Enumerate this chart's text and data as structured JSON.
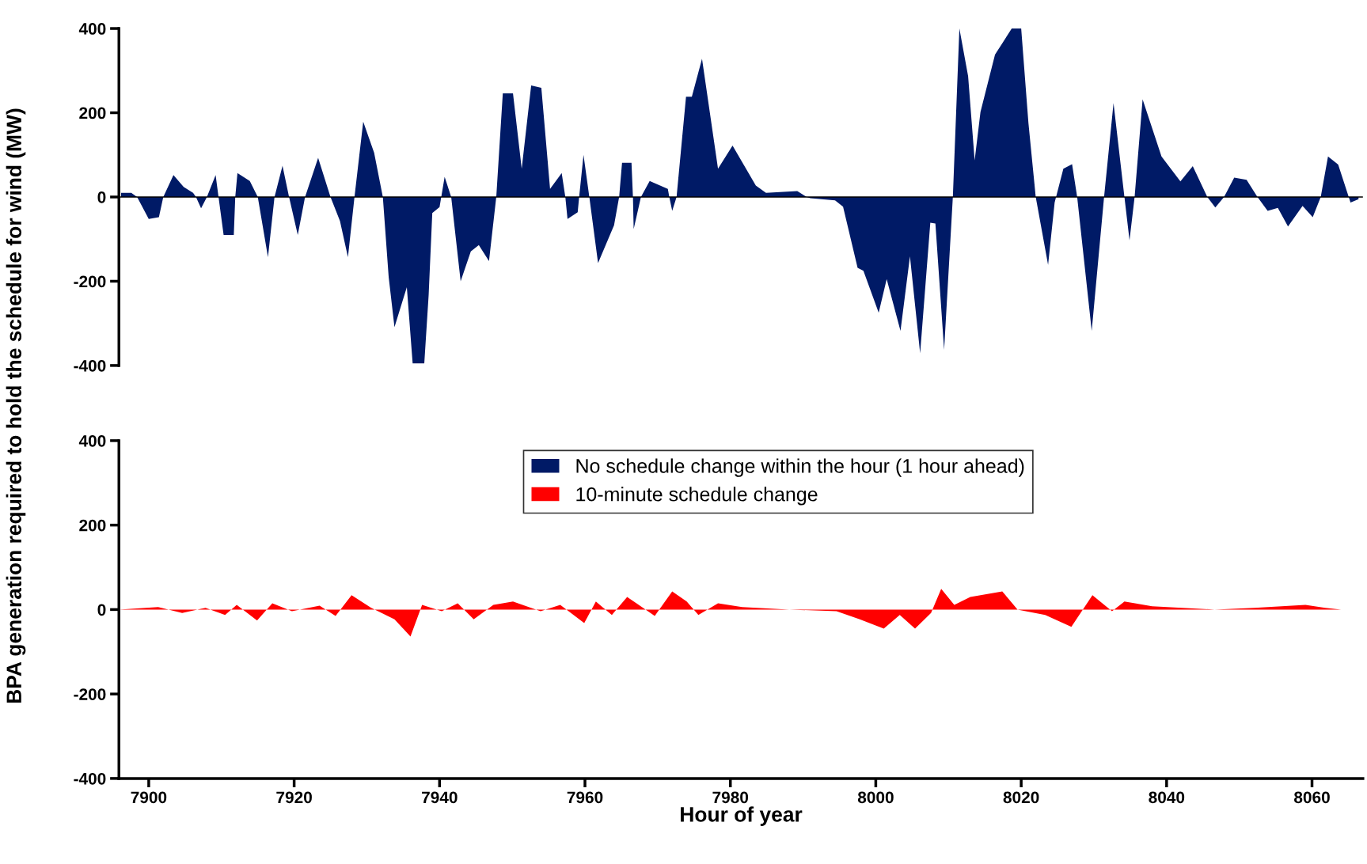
{
  "chart_data": [
    {
      "type": "area",
      "ylabel": "BPA generation required to hold the schedule for wind (MW)",
      "xlim": [
        7895.9,
        8067
      ],
      "ylim": [
        -400,
        400
      ],
      "yticks": [
        -400,
        -200,
        0,
        200,
        400
      ],
      "tick_labels": "y",
      "grid": false,
      "legend": "bottom",
      "ref_lines": [
        {
          "axis": "y",
          "value": 0,
          "color": "#000000"
        }
      ],
      "series": [
        {
          "name": "No schedule change within the hour (1 hour ahead)",
          "color": "#001a66",
          "x": [
            7896.2,
            7897.6,
            7898.4,
            7900,
            7901.4,
            7902.0,
            7903.4,
            7904.8,
            7906.1,
            7906.5,
            7907.2,
            7908.0,
            7909.2,
            7909.6,
            7910.3,
            7911.7,
            7911.9,
            7912.2,
            7913.9,
            7915.0,
            7916.4,
            7917.3,
            7918.4,
            7919.3,
            7920.5,
            7921.5,
            7923.3,
            7925.0,
            7926.3,
            7927.4,
            7928.3,
            7929.5,
            7931,
            7932.2,
            7933,
            7933.8,
            7935.5,
            7936.3,
            7937.9,
            7938.5,
            7939,
            7940.0,
            7940.7,
            7941.6,
            7942.9,
            7944.3,
            7945.4,
            7946.8,
            7947.8,
            7948.7,
            7950.1,
            7951.3,
            7952.6,
            7954,
            7955.2,
            7956.8,
            7957.3,
            7957.6,
            7959,
            7959.2,
            7959.8,
            7960.6,
            7961.8,
            7964,
            7964.7,
            7965.1,
            7966.4,
            7966.6,
            7966.7,
            7967.7,
            7968.9,
            7971.4,
            7971.6,
            7972,
            7972.6,
            7973.9,
            7974.7,
            7976.1,
            7978.3,
            7980.3,
            7983.5,
            7984.9,
            7989.2,
            7990.5,
            7991,
            7994.4,
            7995.5,
            7997.5,
            7998.3,
            8000.4,
            8001.5,
            8003.4,
            8004.7,
            8006.1,
            8007.5,
            8008.2,
            8009.4,
            8010.6,
            8011.5,
            8012.7,
            8013.6,
            8014.4,
            8016.4,
            8018.7,
            8020,
            8021,
            8022.0,
            8023.7,
            8024.6,
            8025.8,
            8027,
            8027.7,
            8029.7,
            8031.4,
            8032.7,
            8034.2,
            8034.9,
            8035.6,
            8036.7,
            8039.3,
            8041.9,
            8043.6,
            8045.6,
            8046.7,
            8047.9,
            8049.3,
            8051,
            8052.5,
            8053.9,
            8055.3,
            8056.7,
            8058.7,
            8060.1,
            8061.2,
            8062.2,
            8063.6,
            8065.3,
            8066.4
          ],
          "values": [
            10,
            10,
            0,
            -52,
            -48,
            0,
            52,
            24,
            10,
            0,
            -27,
            0,
            52,
            0,
            -90,
            -90,
            0,
            57,
            38,
            0,
            -143,
            0,
            74,
            0,
            -90,
            0,
            93,
            0,
            -57,
            -143,
            0,
            179,
            105,
            0,
            -190,
            -309,
            -214,
            -395,
            -395,
            -233,
            -38,
            -24,
            48,
            0,
            -200,
            -129,
            -114,
            -152,
            0,
            246,
            246,
            67,
            265,
            259,
            19,
            57,
            0,
            -52,
            -36,
            0,
            100,
            0,
            -157,
            -67,
            0,
            81,
            81,
            0,
            -76,
            0,
            38,
            19,
            0,
            -33,
            0,
            238,
            238,
            328,
            67,
            122,
            27,
            10,
            14,
            0,
            -3,
            -8,
            -23,
            -168,
            -175,
            -275,
            -195,
            -318,
            -141,
            -371,
            -61,
            -63,
            -363,
            0,
            400,
            287,
            87,
            202,
            338,
            400,
            400,
            175,
            0,
            -161,
            -13,
            67,
            78,
            0,
            -318,
            0,
            223,
            0,
            -103,
            0,
            232,
            96,
            37,
            73,
            0,
            -25,
            0,
            46,
            41,
            0,
            -33,
            -26,
            -70,
            -21,
            -48,
            0,
            96,
            77,
            -13,
            -5
          ]
        }
      ]
    },
    {
      "type": "area",
      "xlabel": "Hour of year",
      "xlim": [
        7895.9,
        8067
      ],
      "xticks": [
        7900,
        7920,
        7940,
        7960,
        7980,
        8000,
        8020,
        8040,
        8060
      ],
      "ylim": [
        -400,
        400
      ],
      "yticks": [
        -400,
        -200,
        0,
        200,
        400
      ],
      "grid": false,
      "legend": "top",
      "series": [
        {
          "name": "10-minute schedule change",
          "color": "#ff0000",
          "x": [
            7895.9,
            7901.3,
            7904.6,
            7907.8,
            7910.5,
            7912.1,
            7914.9,
            7917,
            7919.7,
            7923.5,
            7925.7,
            7927.9,
            7930.6,
            7933.8,
            7936,
            7937.6,
            7940.3,
            7942.5,
            7944.7,
            7947.4,
            7950.1,
            7953.9,
            7956.6,
            7959.9,
            7961.5,
            7963.7,
            7965.8,
            7969.6,
            7972,
            7974,
            7975.6,
            7978.3,
            7981.6,
            7988.1,
            7994.6,
            7997.8,
            8001.1,
            8003.3,
            8005.4,
            8007.6,
            8009,
            8010.8,
            8013,
            8017.4,
            8019.5,
            8023.3,
            8026.9,
            8029.8,
            8032.5,
            8034.2,
            8038,
            8046.6,
            8052.1,
            8059.1,
            8061.8,
            8064
          ],
          "values": [
            0,
            6,
            -8,
            4,
            -13,
            11,
            -26,
            15,
            -4,
            9,
            -15,
            34,
            4,
            -23,
            -64,
            11,
            -4,
            15,
            -23,
            11,
            19,
            -4,
            11,
            -32,
            19,
            -13,
            30,
            -15,
            43,
            19,
            -13,
            15,
            6,
            0,
            -4,
            -23,
            -45,
            -13,
            -45,
            -8,
            49,
            11,
            30,
            43,
            0,
            -13,
            -41,
            34,
            -4,
            19,
            8,
            0,
            4,
            11,
            4,
            0
          ]
        }
      ]
    }
  ]
}
